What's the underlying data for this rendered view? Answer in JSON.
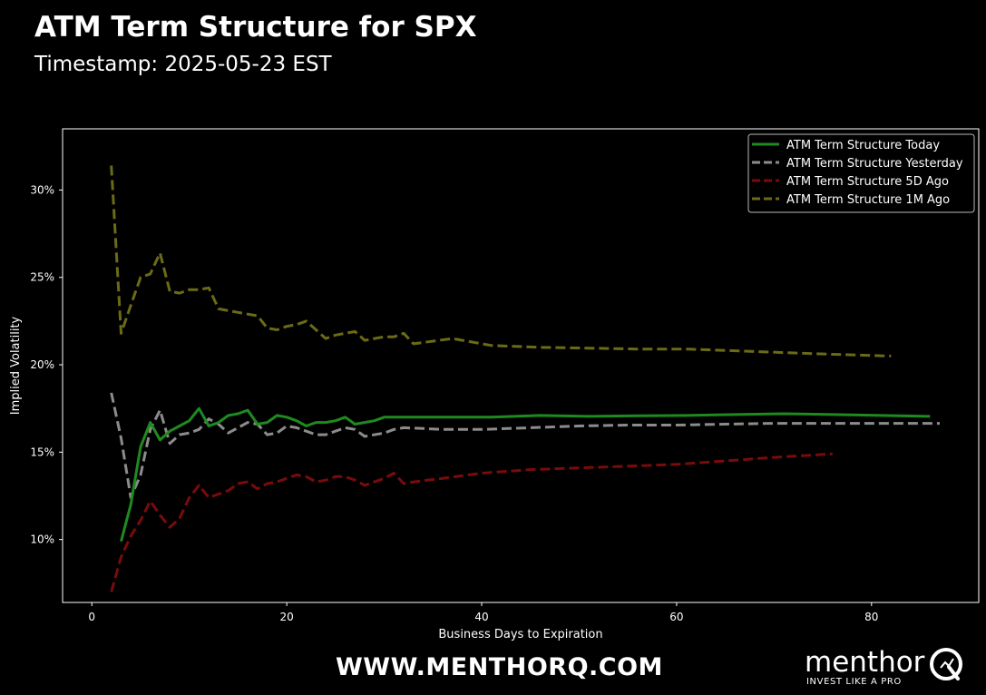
{
  "header": {
    "title": "ATM Term Structure for SPX",
    "subtitle": "Timestamp: 2025-05-23 EST"
  },
  "footer": {
    "website": "WWW.MENTHORQ.COM",
    "brand_name": "menthor",
    "brand_tagline": "INVEST LIKE A PRO"
  },
  "colors": {
    "background": "#000000",
    "axes": "#ffffff",
    "today": "#1f8a1f",
    "yesterday": "#8c8c8c",
    "five_day": "#7a0b0b",
    "one_month": "#6b6b16"
  },
  "chart_data": {
    "type": "line",
    "title": "",
    "xlabel": "Business Days to Expiration",
    "ylabel": "Implied Volatility",
    "xlim": [
      -3,
      91
    ],
    "ylim": [
      0.064,
      0.335
    ],
    "xticks": [
      0,
      20,
      40,
      60,
      80
    ],
    "xtick_labels": [
      "0",
      "20",
      "40",
      "60",
      "80"
    ],
    "yticks": [
      0.1,
      0.15,
      0.2,
      0.25,
      0.3
    ],
    "ytick_labels": [
      "10%",
      "15%",
      "20%",
      "25%",
      "30%"
    ],
    "grid": false,
    "legend": "top-right",
    "series": [
      {
        "name": "ATM Term Structure Today",
        "color": "#1f8a1f",
        "style": "solid",
        "x": [
          3,
          4,
          5,
          6,
          7,
          8,
          9,
          10,
          11,
          12,
          13,
          14,
          15,
          16,
          17,
          18,
          19,
          20,
          21,
          22,
          23,
          24,
          25,
          26,
          27,
          28,
          29,
          30,
          31,
          32,
          33,
          35,
          37,
          41,
          46,
          51,
          56,
          61,
          66,
          71,
          76,
          81,
          86
        ],
        "y": [
          0.099,
          0.12,
          0.153,
          0.167,
          0.157,
          0.162,
          0.165,
          0.168,
          0.175,
          0.165,
          0.167,
          0.171,
          0.172,
          0.174,
          0.166,
          0.167,
          0.171,
          0.17,
          0.168,
          0.165,
          0.167,
          0.167,
          0.168,
          0.17,
          0.166,
          0.167,
          0.168,
          0.17,
          0.17,
          0.17,
          0.17,
          0.17,
          0.17,
          0.17,
          0.171,
          0.1705,
          0.1708,
          0.171,
          0.1715,
          0.172,
          0.1715,
          0.171,
          0.1705
        ]
      },
      {
        "name": "ATM Term Structure Yesterday",
        "color": "#8c8c8c",
        "style": "dashed",
        "x": [
          2,
          3,
          4,
          5,
          6,
          7,
          8,
          9,
          10,
          11,
          12,
          13,
          14,
          15,
          16,
          17,
          18,
          19,
          20,
          21,
          22,
          23,
          24,
          25,
          26,
          27,
          28,
          29,
          30,
          31,
          32,
          34,
          36,
          40,
          45,
          50,
          55,
          60,
          65,
          70,
          75,
          80,
          85,
          87
        ],
        "y": [
          0.184,
          0.158,
          0.124,
          0.137,
          0.163,
          0.174,
          0.155,
          0.16,
          0.161,
          0.163,
          0.169,
          0.166,
          0.161,
          0.164,
          0.167,
          0.166,
          0.16,
          0.161,
          0.165,
          0.164,
          0.162,
          0.16,
          0.16,
          0.162,
          0.164,
          0.163,
          0.159,
          0.16,
          0.161,
          0.163,
          0.164,
          0.1635,
          0.163,
          0.163,
          0.164,
          0.165,
          0.1655,
          0.1655,
          0.166,
          0.1665,
          0.1665,
          0.1665,
          0.1665,
          0.1665
        ]
      },
      {
        "name": "ATM Term Structure 5D Ago",
        "color": "#7a0b0b",
        "style": "dashed",
        "x": [
          2,
          3,
          4,
          5,
          6,
          7,
          8,
          9,
          10,
          11,
          12,
          13,
          14,
          15,
          16,
          17,
          18,
          19,
          20,
          21,
          22,
          23,
          24,
          25,
          26,
          27,
          28,
          29,
          30,
          31,
          32,
          33,
          36,
          40,
          45,
          50,
          55,
          60,
          65,
          70,
          76
        ],
        "y": [
          0.07,
          0.09,
          0.102,
          0.111,
          0.122,
          0.114,
          0.107,
          0.112,
          0.124,
          0.131,
          0.124,
          0.126,
          0.128,
          0.132,
          0.133,
          0.129,
          0.132,
          0.133,
          0.135,
          0.137,
          0.136,
          0.133,
          0.134,
          0.136,
          0.136,
          0.134,
          0.131,
          0.133,
          0.135,
          0.138,
          0.132,
          0.133,
          0.135,
          0.138,
          0.14,
          0.141,
          0.142,
          0.143,
          0.145,
          0.147,
          0.149
        ]
      },
      {
        "name": "ATM Term Structure 1M Ago",
        "color": "#6b6b16",
        "style": "dashed",
        "x": [
          2,
          3,
          4,
          5,
          6,
          7,
          8,
          9,
          10,
          11,
          12,
          13,
          14,
          15,
          16,
          17,
          18,
          19,
          20,
          21,
          22,
          23,
          24,
          25,
          26,
          27,
          28,
          29,
          30,
          31,
          32,
          33,
          37,
          41,
          46,
          51,
          56,
          61,
          66,
          71,
          76,
          82
        ],
        "y": [
          0.314,
          0.218,
          0.234,
          0.25,
          0.252,
          0.264,
          0.242,
          0.241,
          0.243,
          0.243,
          0.244,
          0.232,
          0.231,
          0.23,
          0.229,
          0.228,
          0.221,
          0.22,
          0.222,
          0.223,
          0.225,
          0.22,
          0.215,
          0.217,
          0.218,
          0.219,
          0.214,
          0.215,
          0.216,
          0.216,
          0.218,
          0.212,
          0.215,
          0.211,
          0.21,
          0.2095,
          0.209,
          0.209,
          0.208,
          0.207,
          0.206,
          0.205
        ]
      }
    ]
  }
}
